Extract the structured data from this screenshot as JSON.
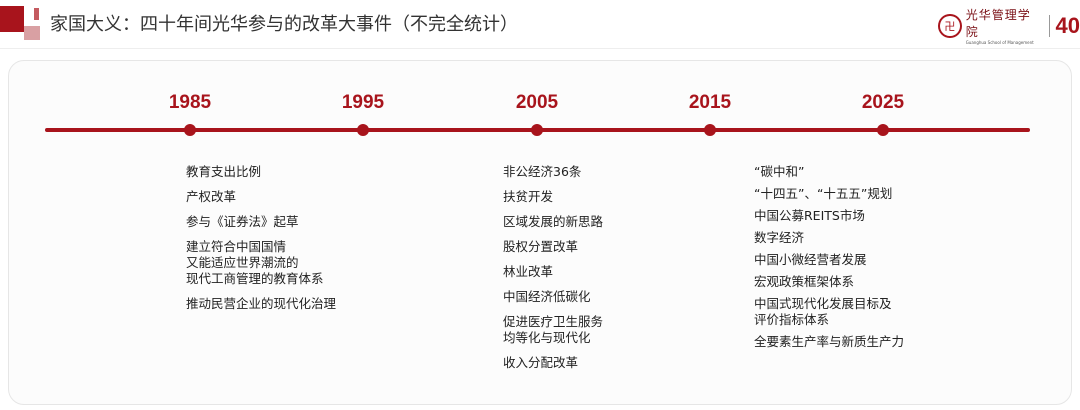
{
  "header": {
    "title": "家国大义：四十年间光华参与的改革大事件（不完全统计）",
    "logo": {
      "name_cn": "光华管理学院",
      "name_en": "Guanghua School of Management",
      "anniversary": "40"
    }
  },
  "timeline": {
    "accent_color": "#a8141c",
    "years": [
      "1985",
      "1995",
      "2005",
      "2015",
      "2025"
    ],
    "columns": [
      {
        "year": "1985",
        "items": [
          "教育支出比例",
          "产权改革",
          "参与《证券法》起草",
          "建立符合中国国情\n又能适应世界潮流的\n现代工商管理的教育体系",
          "推动民营企业的现代化治理"
        ]
      },
      {
        "year": "2005",
        "items": [
          "非公经济36条",
          "扶贫开发",
          "区域发展的新思路",
          "股权分置改革",
          "林业改革",
          "中国经济低碳化",
          "促进医疗卫生服务\n均等化与现代化",
          "收入分配改革"
        ]
      },
      {
        "year": "2025",
        "items": [
          "“碳中和”",
          "“十四五”、“十五五”规划",
          "中国公募REITS市场",
          "数字经济",
          "中国小微经营者发展",
          "宏观政策框架体系",
          "中国式现代化发展目标及\n评价指标体系",
          "全要素生产率与新质生产力"
        ]
      }
    ]
  }
}
